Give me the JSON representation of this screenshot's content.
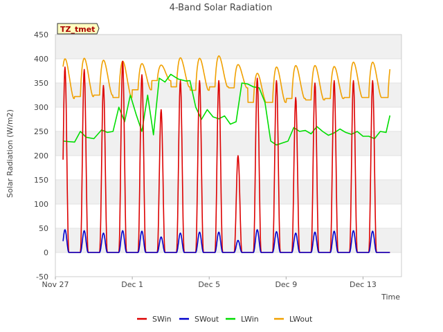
{
  "chart_data": {
    "type": "line",
    "title": "4-Band Solar Radiation",
    "xlabel": "Time",
    "ylabel": "Solar Radiation (W/m2)",
    "badge": "TZ_tmet",
    "ylim": [
      -50,
      450
    ],
    "yticks": [
      -50,
      0,
      50,
      100,
      150,
      200,
      250,
      300,
      350,
      400,
      450
    ],
    "xlim": [
      0,
      18.0
    ],
    "xticks": [
      {
        "day": 0,
        "label": "Nov 27"
      },
      {
        "day": 4,
        "label": "Dec 1"
      },
      {
        "day": 8,
        "label": "Dec 5"
      },
      {
        "day": 12,
        "label": "Dec 9"
      },
      {
        "day": 16,
        "label": "Dec 13"
      }
    ],
    "grid": "horizontal bands",
    "legend_position": "bottom-center",
    "series": [
      {
        "name": "SWin",
        "color": "#dd0000",
        "peaks": [
          383,
          378,
          345,
          395,
          367,
          295,
          355,
          355,
          355,
          200,
          360,
          355,
          320,
          350,
          355,
          355,
          355
        ]
      },
      {
        "name": "SWout",
        "color": "#0000cc",
        "peaks": [
          47,
          45,
          40,
          45,
          44,
          32,
          40,
          42,
          42,
          25,
          47,
          43,
          40,
          42,
          44,
          45,
          44
        ]
      },
      {
        "name": "LWin",
        "color": "#00dd00",
        "x": [
          0.4,
          1.0,
          1.3,
          1.6,
          2.0,
          2.4,
          2.7,
          3.0,
          3.3,
          3.6,
          3.9,
          4.2,
          4.5,
          4.8,
          5.1,
          5.4,
          5.7,
          6.0,
          6.4,
          6.8,
          7.0,
          7.3,
          7.6,
          7.9,
          8.2,
          8.5,
          8.8,
          9.1,
          9.4,
          9.7,
          10.0,
          10.3,
          10.6,
          10.9,
          11.2,
          11.5,
          11.8,
          12.1,
          12.4,
          12.7,
          13.0,
          13.3,
          13.6,
          13.9,
          14.2,
          14.5,
          14.8,
          15.1,
          15.4,
          15.7,
          16.0,
          16.3,
          16.6,
          16.9,
          17.2,
          17.4
        ],
        "values": [
          230,
          228,
          250,
          238,
          235,
          253,
          248,
          250,
          300,
          270,
          325,
          285,
          250,
          325,
          243,
          360,
          352,
          368,
          358,
          354,
          355,
          300,
          275,
          295,
          280,
          276,
          282,
          265,
          270,
          350,
          348,
          342,
          340,
          310,
          230,
          222,
          226,
          230,
          258,
          250,
          252,
          245,
          260,
          250,
          242,
          247,
          255,
          248,
          244,
          250,
          240,
          240,
          235,
          250,
          248,
          283
        ]
      },
      {
        "name": "LWout",
        "color": "#f0a000",
        "day_peaks": [
          400,
          401,
          397,
          395,
          390,
          387,
          402,
          401,
          406,
          388,
          370,
          383,
          386,
          386,
          384,
          393
        ],
        "night_lows": [
          318,
          322,
          325,
          320,
          336,
          355,
          342,
          335,
          342,
          340,
          310,
          310,
          318,
          315,
          318,
          320
        ]
      }
    ]
  }
}
